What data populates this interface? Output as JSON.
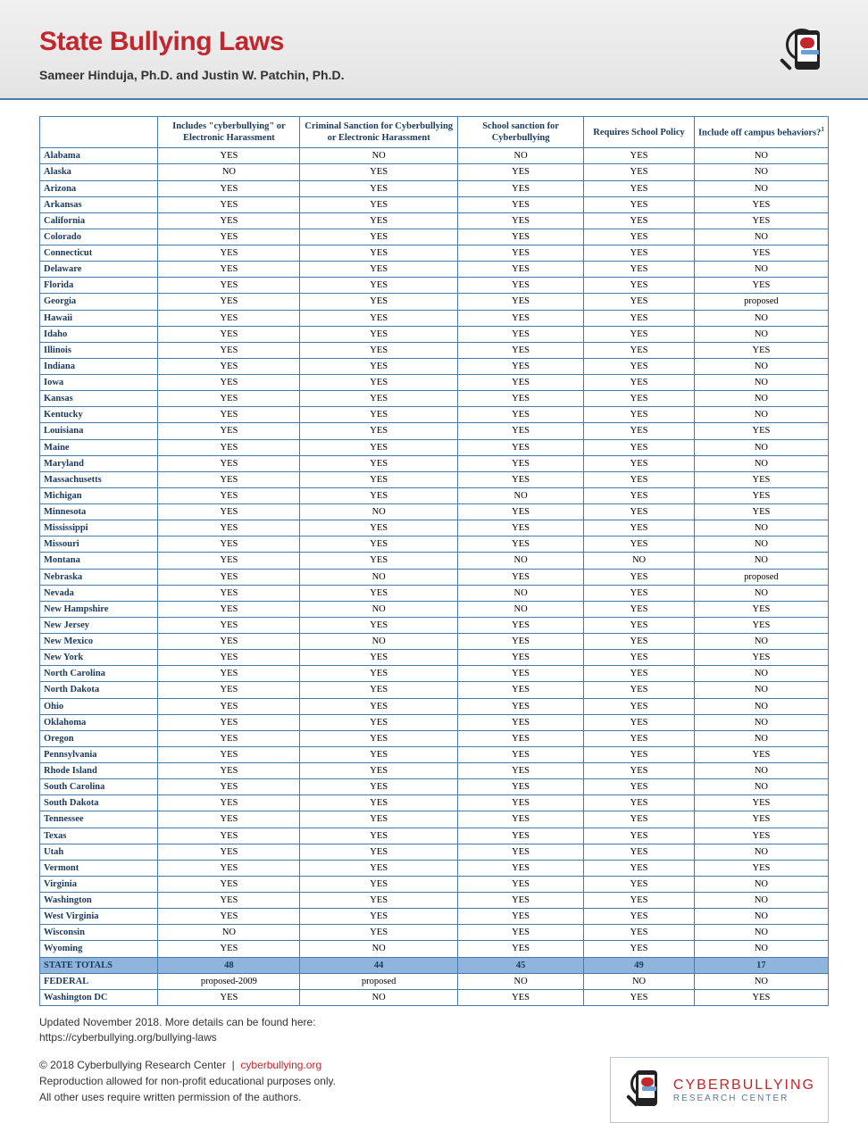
{
  "page": {
    "title": "State Bullying Laws",
    "authors": "Sameer Hinduja, Ph.D. and Justin W. Patchin, Ph.D.",
    "footnote_line1": "Updated November 2018. More details can be found here:",
    "footnote_line2": "https://cyberbullying.org/bullying-laws",
    "copyright": "© 2018 Cyberbullying Research Center",
    "site": "cyberbullying.org",
    "repro_line1": "Reproduction allowed for non-profit educational purposes only.",
    "repro_line2": "All other uses require written permission of the authors.",
    "brand_top": "CYBERBULLYING",
    "brand_bottom": "RESEARCH CENTER"
  },
  "table": {
    "columns": [
      "",
      "Includes \"cyberbullying\" or Electronic Harassment",
      "Criminal Sanction for Cyberbullying or Electronic Harassment",
      "School sanction for Cyberbullying",
      "Requires School Policy",
      "Include off campus behaviors?"
    ],
    "col_widths_pct": [
      15,
      18,
      20,
      16,
      14,
      17
    ],
    "header_color": "#1a3a5c",
    "border_color": "#4a7ba6",
    "totals_bg": "#8fb4dd",
    "font_size_pt": 8,
    "rows": [
      [
        "Alabama",
        "YES",
        "NO",
        "NO",
        "YES",
        "NO"
      ],
      [
        "Alaska",
        "NO",
        "YES",
        "YES",
        "YES",
        "NO"
      ],
      [
        "Arizona",
        "YES",
        "YES",
        "YES",
        "YES",
        "NO"
      ],
      [
        "Arkansas",
        "YES",
        "YES",
        "YES",
        "YES",
        "YES"
      ],
      [
        "California",
        "YES",
        "YES",
        "YES",
        "YES",
        "YES"
      ],
      [
        "Colorado",
        "YES",
        "YES",
        "YES",
        "YES",
        "NO"
      ],
      [
        "Connecticut",
        "YES",
        "YES",
        "YES",
        "YES",
        "YES"
      ],
      [
        "Delaware",
        "YES",
        "YES",
        "YES",
        "YES",
        "NO"
      ],
      [
        "Florida",
        "YES",
        "YES",
        "YES",
        "YES",
        "YES"
      ],
      [
        "Georgia",
        "YES",
        "YES",
        "YES",
        "YES",
        "proposed"
      ],
      [
        "Hawaii",
        "YES",
        "YES",
        "YES",
        "YES",
        "NO"
      ],
      [
        "Idaho",
        "YES",
        "YES",
        "YES",
        "YES",
        "NO"
      ],
      [
        "Illinois",
        "YES",
        "YES",
        "YES",
        "YES",
        "YES"
      ],
      [
        "Indiana",
        "YES",
        "YES",
        "YES",
        "YES",
        "NO"
      ],
      [
        "Iowa",
        "YES",
        "YES",
        "YES",
        "YES",
        "NO"
      ],
      [
        "Kansas",
        "YES",
        "YES",
        "YES",
        "YES",
        "NO"
      ],
      [
        "Kentucky",
        "YES",
        "YES",
        "YES",
        "YES",
        "NO"
      ],
      [
        "Louisiana",
        "YES",
        "YES",
        "YES",
        "YES",
        "YES"
      ],
      [
        "Maine",
        "YES",
        "YES",
        "YES",
        "YES",
        "NO"
      ],
      [
        "Maryland",
        "YES",
        "YES",
        "YES",
        "YES",
        "NO"
      ],
      [
        "Massachusetts",
        "YES",
        "YES",
        "YES",
        "YES",
        "YES"
      ],
      [
        "Michigan",
        "YES",
        "YES",
        "NO",
        "YES",
        "YES"
      ],
      [
        "Minnesota",
        "YES",
        "NO",
        "YES",
        "YES",
        "YES"
      ],
      [
        "Mississippi",
        "YES",
        "YES",
        "YES",
        "YES",
        "NO"
      ],
      [
        "Missouri",
        "YES",
        "YES",
        "YES",
        "YES",
        "NO"
      ],
      [
        "Montana",
        "YES",
        "YES",
        "NO",
        "NO",
        "NO"
      ],
      [
        "Nebraska",
        "YES",
        "NO",
        "YES",
        "YES",
        "proposed"
      ],
      [
        "Nevada",
        "YES",
        "YES",
        "NO",
        "YES",
        "NO"
      ],
      [
        "New Hampshire",
        "YES",
        "NO",
        "NO",
        "YES",
        "YES"
      ],
      [
        "New Jersey",
        "YES",
        "YES",
        "YES",
        "YES",
        "YES"
      ],
      [
        "New Mexico",
        "YES",
        "NO",
        "YES",
        "YES",
        "NO"
      ],
      [
        "New York",
        "YES",
        "YES",
        "YES",
        "YES",
        "YES"
      ],
      [
        "North Carolina",
        "YES",
        "YES",
        "YES",
        "YES",
        "NO"
      ],
      [
        "North Dakota",
        "YES",
        "YES",
        "YES",
        "YES",
        "NO"
      ],
      [
        "Ohio",
        "YES",
        "YES",
        "YES",
        "YES",
        "NO"
      ],
      [
        "Oklahoma",
        "YES",
        "YES",
        "YES",
        "YES",
        "NO"
      ],
      [
        "Oregon",
        "YES",
        "YES",
        "YES",
        "YES",
        "NO"
      ],
      [
        "Pennsylvania",
        "YES",
        "YES",
        "YES",
        "YES",
        "YES"
      ],
      [
        "Rhode Island",
        "YES",
        "YES",
        "YES",
        "YES",
        "NO"
      ],
      [
        "South Carolina",
        "YES",
        "YES",
        "YES",
        "YES",
        "NO"
      ],
      [
        "South Dakota",
        "YES",
        "YES",
        "YES",
        "YES",
        "YES"
      ],
      [
        "Tennessee",
        "YES",
        "YES",
        "YES",
        "YES",
        "YES"
      ],
      [
        "Texas",
        "YES",
        "YES",
        "YES",
        "YES",
        "YES"
      ],
      [
        "Utah",
        "YES",
        "YES",
        "YES",
        "YES",
        "NO"
      ],
      [
        "Vermont",
        "YES",
        "YES",
        "YES",
        "YES",
        "YES"
      ],
      [
        "Virginia",
        "YES",
        "YES",
        "YES",
        "YES",
        "NO"
      ],
      [
        "Washington",
        "YES",
        "YES",
        "YES",
        "YES",
        "NO"
      ],
      [
        "West Virginia",
        "YES",
        "YES",
        "YES",
        "YES",
        "NO"
      ],
      [
        "Wisconsin",
        "NO",
        "YES",
        "YES",
        "YES",
        "NO"
      ],
      [
        "Wyoming",
        "YES",
        "NO",
        "YES",
        "YES",
        "NO"
      ]
    ],
    "totals_row": [
      "STATE TOTALS",
      "48",
      "44",
      "45",
      "49",
      "17"
    ],
    "federal_row": [
      "FEDERAL",
      "proposed-2009",
      "proposed",
      "NO",
      "NO",
      "NO"
    ],
    "dc_row": [
      "Washington DC",
      "YES",
      "NO",
      "YES",
      "YES",
      "YES"
    ]
  },
  "colors": {
    "title": "#c1272d",
    "header_band_top": "#f0f0f0",
    "header_band_bottom": "#e4e4e4",
    "rule": "#4a7ba6",
    "text": "#333333"
  }
}
